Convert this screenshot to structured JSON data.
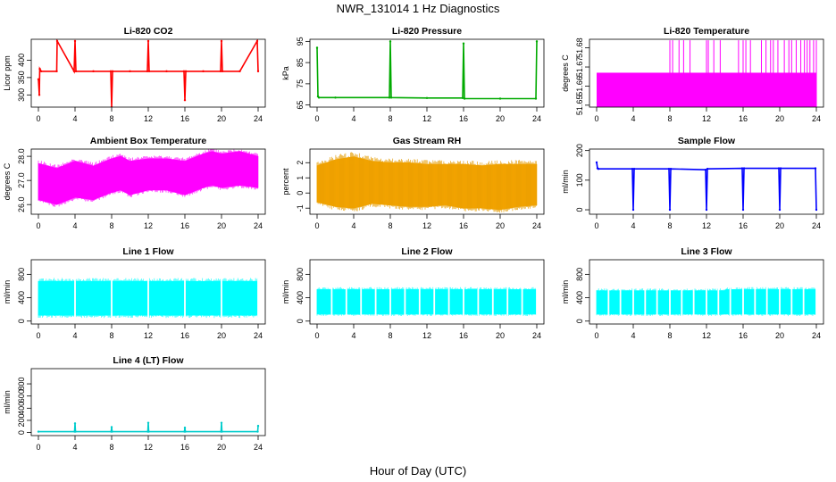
{
  "figure": {
    "title": "NWR_131014  1 Hz Diagnostics",
    "xlabel": "Hour of Day (UTC)"
  },
  "chart_data": [
    {
      "type": "line",
      "title": "Li-820 CO2",
      "ylabel": "Licor ppm",
      "color": "#ff0000",
      "xlim": [
        0,
        24
      ],
      "ylim": [
        265,
        460
      ],
      "xticks": [
        "0",
        "4",
        "8",
        "12",
        "16",
        "20",
        "24"
      ],
      "yticks": [
        "300",
        "350",
        "400"
      ],
      "series": [
        {
          "x": [
            0,
            0.1,
            0.15,
            0.3,
            2,
            2.05,
            3.9,
            4,
            4.1,
            6,
            7.9,
            8,
            8.1,
            10,
            11.9,
            12,
            12.1,
            14,
            15.9,
            16,
            16.1,
            18,
            19.9,
            20,
            20.1,
            22,
            23.9,
            24
          ],
          "values": [
            345,
            300,
            375,
            368,
            368,
            455,
            368,
            455,
            368,
            368,
            368,
            265,
            368,
            368,
            368,
            455,
            368,
            368,
            368,
            285,
            368,
            368,
            368,
            455,
            368,
            368,
            455,
            368
          ]
        }
      ]
    },
    {
      "type": "line",
      "title": "Li-820 Pressure",
      "ylabel": "kPa",
      "color": "#00aa00",
      "xlim": [
        0,
        24
      ],
      "ylim": [
        64,
        96
      ],
      "xticks": [
        "0",
        "4",
        "8",
        "12",
        "16",
        "20",
        "24"
      ],
      "yticks": [
        "65",
        "75",
        "85",
        "95"
      ],
      "series": [
        {
          "x": [
            0,
            0.1,
            0.2,
            2,
            7.9,
            8,
            8.1,
            12,
            15.9,
            16,
            16.1,
            20,
            23.9,
            24
          ],
          "values": [
            92,
            69,
            68.5,
            68.5,
            68.5,
            95,
            68.5,
            68.3,
            68.3,
            94,
            68,
            68,
            68,
            95
          ]
        }
      ]
    },
    {
      "type": "area",
      "title": "Li-820 Temperature",
      "ylabel": "degrees C",
      "color": "#ff00ff",
      "xlim": [
        0,
        24
      ],
      "ylim": [
        51.649,
        51.6845
      ],
      "xticks": [
        "0",
        "4",
        "8",
        "12",
        "16",
        "20",
        "24"
      ],
      "yticks": [
        "51.65",
        "51.66",
        "51.67",
        "51.68"
      ],
      "series": [
        {
          "x": [
            0,
            24
          ],
          "values": [
            51.667,
            51.667
          ]
        }
      ],
      "spikes": [
        8,
        8.3,
        9,
        9.5,
        10.2,
        12,
        12.2,
        12.8,
        13.5,
        15.5,
        16,
        16.3,
        16.8,
        18,
        18.5,
        19,
        19.3,
        19.8,
        20.5,
        21,
        21.3,
        21.8,
        22.3,
        22.7,
        23,
        23.3,
        23.7,
        24
      ],
      "spike_top": 51.684
    },
    {
      "type": "line",
      "title": "Ambient Box Temperature",
      "ylabel": "degrees C",
      "color": "#ff00ff",
      "xlim": [
        0,
        24
      ],
      "ylim": [
        25.6,
        28.3
      ],
      "xticks": [
        "0",
        "4",
        "8",
        "12",
        "16",
        "20",
        "24"
      ],
      "yticks": [
        "26.0",
        "27.0",
        "28.0"
      ],
      "band": {
        "x": [
          0,
          2,
          4,
          6,
          8,
          9,
          10,
          12,
          14,
          16,
          18,
          19,
          20,
          22,
          24
        ],
        "low": [
          26.2,
          26.0,
          26.3,
          26.2,
          26.5,
          26.6,
          26.4,
          26.6,
          26.6,
          26.4,
          26.7,
          26.8,
          26.7,
          26.8,
          26.7
        ],
        "high": [
          27.7,
          27.5,
          27.8,
          27.6,
          27.9,
          28.0,
          27.8,
          27.9,
          27.9,
          27.8,
          28.1,
          28.2,
          28.1,
          28.2,
          28.0
        ]
      }
    },
    {
      "type": "line",
      "title": "Gas Stream RH",
      "ylabel": "percent",
      "color": "#ffaa00",
      "xlim": [
        0,
        24
      ],
      "ylim": [
        -1.4,
        2.9
      ],
      "xticks": [
        "0",
        "4",
        "8",
        "12",
        "16",
        "20",
        "24"
      ],
      "yticks": [
        "-1",
        "0",
        "1",
        "2"
      ],
      "band": {
        "x": [
          0,
          2,
          4,
          6,
          8,
          10,
          12,
          14,
          16,
          18,
          20,
          22,
          24
        ],
        "low": [
          -0.6,
          -0.9,
          -1.0,
          -0.7,
          -0.8,
          -0.9,
          -0.9,
          -0.8,
          -1.0,
          -1.0,
          -1.1,
          -0.9,
          -0.8
        ],
        "high": [
          1.8,
          2.2,
          2.4,
          2.1,
          2.0,
          2.0,
          1.9,
          1.9,
          1.9,
          1.8,
          1.9,
          1.9,
          1.9
        ]
      }
    },
    {
      "type": "line",
      "title": "Sample Flow",
      "ylabel": "ml/min",
      "color": "#0000ff",
      "xlim": [
        0,
        24
      ],
      "ylim": [
        -15,
        205
      ],
      "xticks": [
        "0",
        "4",
        "8",
        "12",
        "16",
        "20",
        "24"
      ],
      "yticks": [
        "0",
        "100",
        "200"
      ],
      "series": [
        {
          "x": [
            0,
            0.1,
            0.2,
            3.9,
            4,
            4.1,
            7.9,
            8,
            8.1,
            11.9,
            12,
            12.1,
            15.9,
            16,
            16.1,
            19.9,
            20,
            20.1,
            23.9,
            24
          ],
          "values": [
            160,
            140,
            138,
            138,
            0,
            138,
            138,
            0,
            138,
            135,
            0,
            138,
            140,
            0,
            140,
            140,
            0,
            140,
            140,
            0
          ]
        }
      ]
    },
    {
      "type": "area",
      "title": "Line 1 Flow",
      "ylabel": "ml/min",
      "color": "#00ffff",
      "xlim": [
        0,
        24
      ],
      "ylim": [
        -50,
        1050
      ],
      "xticks": [
        "0",
        "4",
        "8",
        "12",
        "16",
        "20",
        "24"
      ],
      "yticks": [
        "0",
        "400",
        "800"
      ],
      "band": {
        "x": [
          0,
          24
        ],
        "low": [
          100,
          100
        ],
        "high": [
          680,
          680
        ]
      },
      "gaps": [
        4,
        8,
        12,
        16,
        20,
        24
      ]
    },
    {
      "type": "area",
      "title": "Line 2 Flow",
      "ylabel": "ml/min",
      "color": "#00ffff",
      "xlim": [
        0,
        24
      ],
      "ylim": [
        -50,
        1050
      ],
      "xticks": [
        "0",
        "4",
        "8",
        "12",
        "16",
        "20",
        "24"
      ],
      "yticks": [
        "0",
        "400",
        "800"
      ],
      "band": {
        "x": [
          0,
          24
        ],
        "low": [
          120,
          120
        ],
        "high": [
          540,
          540
        ]
      },
      "gaps": [
        1.6,
        3.2,
        4.8,
        6.4,
        8,
        9.6,
        11.2,
        12.8,
        14.4,
        16,
        17.6,
        19.2,
        20.8,
        22.4,
        24
      ]
    },
    {
      "type": "area",
      "title": "Line 3 Flow",
      "ylabel": "ml/min",
      "color": "#00ffff",
      "xlim": [
        0,
        24
      ],
      "ylim": [
        -50,
        1050
      ],
      "xticks": [
        "0",
        "4",
        "8",
        "12",
        "16",
        "20",
        "24"
      ],
      "yticks": [
        "0",
        "400",
        "800"
      ],
      "band": {
        "x": [
          0,
          14,
          14.1,
          24
        ],
        "low": [
          120,
          120,
          120,
          120
        ],
        "high": [
          520,
          520,
          540,
          540
        ]
      },
      "gaps": [
        1.3,
        2.6,
        4,
        5.3,
        6.6,
        8,
        9.3,
        10.6,
        12,
        13.3,
        14.6,
        16,
        17.3,
        18.6,
        20,
        21.3,
        22.6,
        24
      ]
    },
    {
      "type": "line",
      "title": "Line 4 (LT) Flow",
      "ylabel": "ml/min",
      "color": "#00cccc",
      "xlim": [
        0,
        24
      ],
      "ylim": [
        -50,
        1050
      ],
      "xticks": [
        "0",
        "4",
        "8",
        "12",
        "16",
        "20",
        "24"
      ],
      "yticks": [
        "0",
        "200",
        "400",
        "600",
        "800"
      ],
      "series": [
        {
          "x": [
            0,
            3.95,
            4,
            4.05,
            7.95,
            8,
            8.05,
            11.95,
            12,
            12.05,
            15.95,
            16,
            16.05,
            19.95,
            20,
            20.05,
            23.95,
            24
          ],
          "values": [
            15,
            15,
            150,
            15,
            15,
            90,
            15,
            15,
            160,
            15,
            15,
            80,
            15,
            15,
            160,
            15,
            15,
            110
          ]
        }
      ]
    }
  ]
}
